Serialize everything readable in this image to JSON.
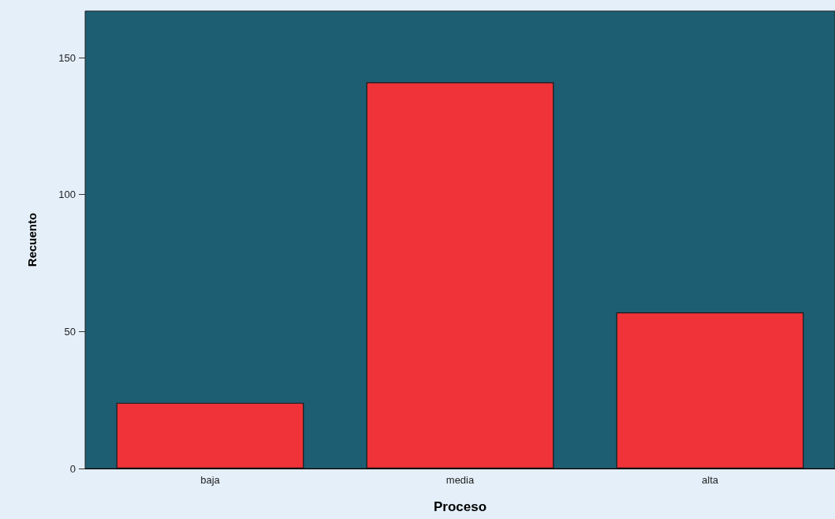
{
  "chart_data": {
    "type": "bar",
    "xlabel": "Proceso",
    "ylabel": "Recuento",
    "categories": [
      "baja",
      "media",
      "alta"
    ],
    "values": [
      24,
      141,
      57
    ],
    "color": "#ef3338",
    "ylim": [
      0,
      167
    ],
    "yticks": [
      0,
      50,
      100,
      150
    ],
    "grid": false
  }
}
